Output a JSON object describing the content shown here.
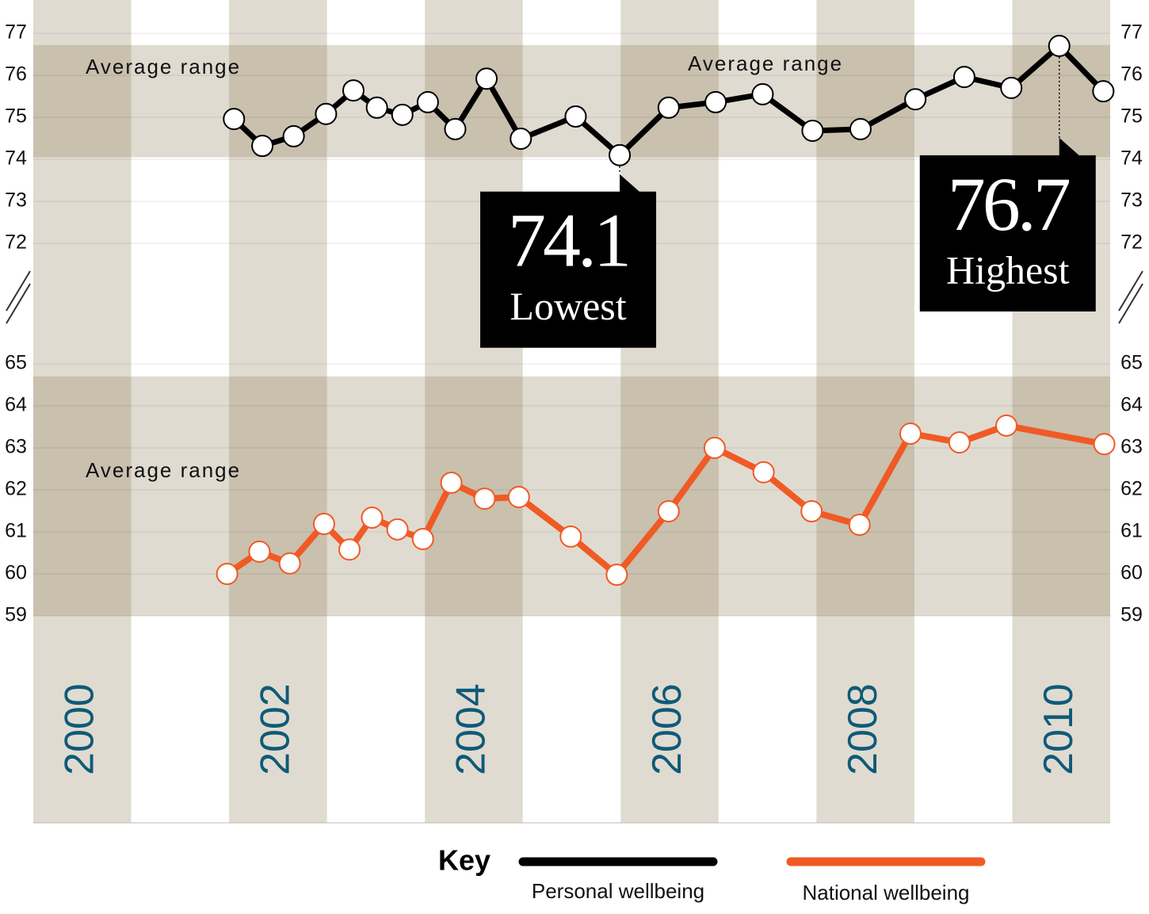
{
  "legend": {
    "title": "Key"
  },
  "chart_data": [
    {
      "type": "line",
      "xlim": [
        2000,
        2011
      ],
      "ylim": [
        72,
        77
      ],
      "yticks": [
        72,
        73,
        74,
        75,
        76,
        77
      ],
      "average_range": [
        74.05,
        76.72
      ],
      "annotations": [
        "Average range",
        "Average range"
      ],
      "callout_labels": {
        "min": "Lowest",
        "max": "Highest"
      },
      "series": [
        {
          "name": "Personal wellbeing",
          "color": "#000000",
          "x": [
            2002.05,
            2002.34,
            2002.66,
            2002.99,
            2003.27,
            2003.51,
            2003.77,
            2004.03,
            2004.31,
            2004.63,
            2004.98,
            2005.54,
            2005.99,
            2006.49,
            2006.97,
            2007.45,
            2007.96,
            2008.45,
            2009.01,
            2009.51,
            2009.99,
            2010.48,
            2010.93
          ],
          "values": [
            74.96,
            74.32,
            74.55,
            75.08,
            75.64,
            75.23,
            75.06,
            75.36,
            74.72,
            75.92,
            74.49,
            75.02,
            74.1,
            75.23,
            75.36,
            75.55,
            74.68,
            74.72,
            75.43,
            75.96,
            75.7,
            76.7,
            75.62
          ]
        }
      ]
    },
    {
      "type": "line",
      "xlim": [
        2000,
        2011
      ],
      "xticks": [
        2000,
        2002,
        2004,
        2006,
        2008,
        2010
      ],
      "ylim": [
        59,
        65
      ],
      "yticks": [
        59,
        60,
        61,
        62,
        63,
        64,
        65
      ],
      "average_range": [
        59,
        64.7
      ],
      "annotations": [
        "Average range"
      ],
      "series": [
        {
          "name": "National wellbeing",
          "color": "#f05a24",
          "x": [
            2001.98,
            2002.31,
            2002.62,
            2002.97,
            2003.23,
            2003.46,
            2003.72,
            2003.98,
            2004.27,
            2004.61,
            2004.96,
            2005.49,
            2005.96,
            2006.49,
            2006.96,
            2007.46,
            2007.95,
            2008.44,
            2008.96,
            2009.46,
            2009.94,
            2010.94
          ],
          "values": [
            60.0,
            60.53,
            60.25,
            61.19,
            60.58,
            61.34,
            61.06,
            60.83,
            62.17,
            61.79,
            61.83,
            60.89,
            59.98,
            61.49,
            63.0,
            62.42,
            61.49,
            61.17,
            63.34,
            63.13,
            63.53,
            63.09
          ]
        }
      ]
    }
  ]
}
